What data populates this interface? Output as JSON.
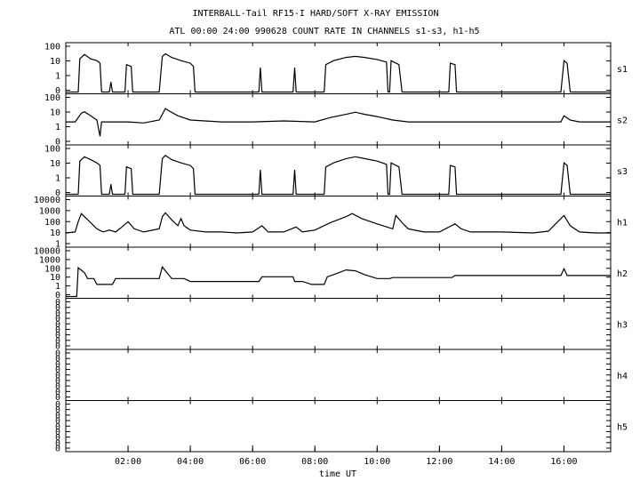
{
  "title": "INTERBALL-Tail RF15-I HARD/SOFT X-RAY EMISSION",
  "subtitle": "ATL 00:00 24:00 990628  COUNT RATE IN CHANNELS s1-s3, h1-h5",
  "colors": {
    "background": "#ffffff",
    "ink": "#000000"
  },
  "chart_data": {
    "type": "line",
    "title": "INTERBALL-Tail RF15-I HARD/SOFT X-RAY EMISSION",
    "subtitle": "ATL 00:00 24:00 990628  COUNT RATE IN CHANNELS s1-s3, h1-h5",
    "xlabel": "time UT",
    "x_tick_labels": [
      "02:00",
      "04:00",
      "06:00",
      "08:00",
      "10:00",
      "12:00",
      "14:00",
      "16:00"
    ],
    "x_tick_hours": [
      2,
      4,
      6,
      8,
      10,
      12,
      14,
      16
    ],
    "xlim_hours": [
      0,
      17.5
    ],
    "y_scale": "log",
    "grid": false,
    "panels": [
      {
        "name": "s1",
        "y_tick_labels": [
          "100",
          "10",
          "1",
          "0"
        ],
        "ylim": [
          0.1,
          200
        ],
        "series_points": [
          [
            0.0,
            0.1
          ],
          [
            0.4,
            0.1
          ],
          [
            0.45,
            20
          ],
          [
            0.6,
            40
          ],
          [
            0.8,
            20
          ],
          [
            1.0,
            15
          ],
          [
            1.1,
            10
          ],
          [
            1.15,
            0.1
          ],
          [
            1.4,
            0.1
          ],
          [
            1.45,
            0.5
          ],
          [
            1.5,
            0.1
          ],
          [
            1.9,
            0.1
          ],
          [
            1.95,
            8
          ],
          [
            2.1,
            6
          ],
          [
            2.15,
            0.1
          ],
          [
            3.0,
            0.1
          ],
          [
            3.1,
            30
          ],
          [
            3.2,
            45
          ],
          [
            3.4,
            25
          ],
          [
            3.7,
            15
          ],
          [
            4.0,
            10
          ],
          [
            4.1,
            6
          ],
          [
            4.15,
            0.1
          ],
          [
            6.2,
            0.1
          ],
          [
            6.25,
            5
          ],
          [
            6.3,
            0.1
          ],
          [
            7.3,
            0.1
          ],
          [
            7.35,
            5
          ],
          [
            7.4,
            0.1
          ],
          [
            8.3,
            0.1
          ],
          [
            8.35,
            8
          ],
          [
            8.6,
            15
          ],
          [
            9.0,
            25
          ],
          [
            9.3,
            30
          ],
          [
            9.6,
            25
          ],
          [
            10.0,
            18
          ],
          [
            10.3,
            12
          ],
          [
            10.35,
            0.1
          ],
          [
            10.4,
            0.1
          ],
          [
            10.45,
            15
          ],
          [
            10.7,
            8
          ],
          [
            10.8,
            0.1
          ],
          [
            12.3,
            0.1
          ],
          [
            12.35,
            10
          ],
          [
            12.5,
            8
          ],
          [
            12.55,
            0.1
          ],
          [
            15.9,
            0.1
          ],
          [
            16.0,
            15
          ],
          [
            16.1,
            10
          ],
          [
            16.2,
            0.1
          ],
          [
            17.5,
            0.1
          ]
        ]
      },
      {
        "name": "s2",
        "y_tick_labels": [
          "100",
          "10",
          "1",
          "0"
        ],
        "ylim": [
          0.1,
          200
        ],
        "series_points": [
          [
            0.0,
            3
          ],
          [
            0.3,
            3
          ],
          [
            0.5,
            12
          ],
          [
            0.6,
            15
          ],
          [
            0.8,
            8
          ],
          [
            1.0,
            4
          ],
          [
            1.1,
            0.3
          ],
          [
            1.15,
            3
          ],
          [
            2.0,
            3
          ],
          [
            2.5,
            2.5
          ],
          [
            3.0,
            4
          ],
          [
            3.2,
            25
          ],
          [
            3.3,
            18
          ],
          [
            3.6,
            8
          ],
          [
            4.0,
            4
          ],
          [
            5.0,
            3
          ],
          [
            6.0,
            3
          ],
          [
            7.0,
            3.5
          ],
          [
            8.0,
            3
          ],
          [
            8.5,
            6
          ],
          [
            9.0,
            10
          ],
          [
            9.3,
            14
          ],
          [
            9.6,
            10
          ],
          [
            10.0,
            7
          ],
          [
            10.5,
            4
          ],
          [
            11.0,
            3
          ],
          [
            12.0,
            3
          ],
          [
            13.0,
            3
          ],
          [
            14.0,
            3
          ],
          [
            15.0,
            3
          ],
          [
            15.9,
            3
          ],
          [
            16.0,
            8
          ],
          [
            16.2,
            4
          ],
          [
            16.5,
            3
          ],
          [
            17.5,
            3
          ]
        ]
      },
      {
        "name": "s3",
        "y_tick_labels": [
          "100",
          "10",
          "1",
          "0"
        ],
        "ylim": [
          0.1,
          200
        ],
        "series_points": [
          [
            0.0,
            0.1
          ],
          [
            0.4,
            0.1
          ],
          [
            0.45,
            20
          ],
          [
            0.6,
            40
          ],
          [
            0.8,
            25
          ],
          [
            1.0,
            15
          ],
          [
            1.1,
            10
          ],
          [
            1.15,
            0.1
          ],
          [
            1.4,
            0.1
          ],
          [
            1.45,
            0.5
          ],
          [
            1.5,
            0.1
          ],
          [
            1.9,
            0.1
          ],
          [
            1.95,
            8
          ],
          [
            2.1,
            6
          ],
          [
            2.15,
            0.1
          ],
          [
            3.0,
            0.1
          ],
          [
            3.1,
            30
          ],
          [
            3.2,
            50
          ],
          [
            3.4,
            25
          ],
          [
            3.7,
            15
          ],
          [
            4.0,
            10
          ],
          [
            4.1,
            6
          ],
          [
            4.15,
            0.1
          ],
          [
            6.2,
            0.1
          ],
          [
            6.25,
            5
          ],
          [
            6.3,
            0.1
          ],
          [
            7.3,
            0.1
          ],
          [
            7.35,
            5
          ],
          [
            7.4,
            0.1
          ],
          [
            8.3,
            0.1
          ],
          [
            8.35,
            8
          ],
          [
            8.6,
            15
          ],
          [
            9.0,
            30
          ],
          [
            9.3,
            40
          ],
          [
            9.6,
            30
          ],
          [
            10.0,
            20
          ],
          [
            10.3,
            12
          ],
          [
            10.35,
            0.1
          ],
          [
            10.4,
            0.1
          ],
          [
            10.45,
            15
          ],
          [
            10.7,
            8
          ],
          [
            10.8,
            0.1
          ],
          [
            12.3,
            0.1
          ],
          [
            12.35,
            10
          ],
          [
            12.5,
            8
          ],
          [
            12.55,
            0.1
          ],
          [
            15.9,
            0.1
          ],
          [
            16.0,
            15
          ],
          [
            16.1,
            10
          ],
          [
            16.2,
            0.1
          ],
          [
            17.5,
            0.1
          ]
        ]
      },
      {
        "name": "h1",
        "y_tick_labels": [
          "10000",
          "1000",
          "100",
          "10",
          "1"
        ],
        "ylim": [
          0.5,
          20000
        ],
        "series_points": [
          [
            0.0,
            8
          ],
          [
            0.3,
            10
          ],
          [
            0.4,
            100
          ],
          [
            0.5,
            600
          ],
          [
            0.6,
            300
          ],
          [
            0.8,
            80
          ],
          [
            1.0,
            20
          ],
          [
            1.2,
            10
          ],
          [
            1.4,
            15
          ],
          [
            1.6,
            10
          ],
          [
            1.8,
            30
          ],
          [
            2.0,
            100
          ],
          [
            2.2,
            20
          ],
          [
            2.5,
            10
          ],
          [
            3.0,
            20
          ],
          [
            3.1,
            300
          ],
          [
            3.2,
            700
          ],
          [
            3.4,
            150
          ],
          [
            3.6,
            40
          ],
          [
            3.7,
            200
          ],
          [
            3.8,
            40
          ],
          [
            4.0,
            15
          ],
          [
            4.5,
            10
          ],
          [
            5.0,
            10
          ],
          [
            5.5,
            8
          ],
          [
            6.0,
            10
          ],
          [
            6.3,
            40
          ],
          [
            6.5,
            10
          ],
          [
            7.0,
            10
          ],
          [
            7.4,
            30
          ],
          [
            7.6,
            10
          ],
          [
            8.0,
            15
          ],
          [
            8.5,
            80
          ],
          [
            9.0,
            300
          ],
          [
            9.2,
            600
          ],
          [
            9.5,
            200
          ],
          [
            10.0,
            60
          ],
          [
            10.5,
            20
          ],
          [
            10.6,
            400
          ],
          [
            10.8,
            80
          ],
          [
            11.0,
            20
          ],
          [
            11.5,
            10
          ],
          [
            12.0,
            10
          ],
          [
            12.5,
            60
          ],
          [
            12.7,
            20
          ],
          [
            13.0,
            10
          ],
          [
            14.0,
            10
          ],
          [
            15.0,
            8
          ],
          [
            15.5,
            12
          ],
          [
            16.0,
            400
          ],
          [
            16.2,
            40
          ],
          [
            16.5,
            10
          ],
          [
            17.0,
            8
          ],
          [
            17.5,
            8
          ]
        ]
      },
      {
        "name": "h2",
        "y_tick_labels": [
          "10000",
          "1000",
          "100",
          "10",
          "1",
          "0"
        ],
        "ylim": [
          0.3,
          20000
        ],
        "series_points": [
          [
            0.0,
            0.3
          ],
          [
            0.35,
            0.3
          ],
          [
            0.4,
            250
          ],
          [
            0.6,
            80
          ],
          [
            0.7,
            20
          ],
          [
            0.9,
            20
          ],
          [
            1.0,
            5
          ],
          [
            1.5,
            5
          ],
          [
            1.6,
            20
          ],
          [
            1.9,
            20
          ],
          [
            2.0,
            20
          ],
          [
            2.2,
            20
          ],
          [
            3.0,
            20
          ],
          [
            3.1,
            300
          ],
          [
            3.3,
            50
          ],
          [
            3.4,
            20
          ],
          [
            3.8,
            20
          ],
          [
            4.0,
            10
          ],
          [
            5.0,
            10
          ],
          [
            6.0,
            10
          ],
          [
            6.2,
            10
          ],
          [
            6.3,
            30
          ],
          [
            7.3,
            30
          ],
          [
            7.35,
            10
          ],
          [
            7.6,
            10
          ],
          [
            7.9,
            5
          ],
          [
            8.3,
            5
          ],
          [
            8.4,
            30
          ],
          [
            8.6,
            50
          ],
          [
            9.0,
            150
          ],
          [
            9.3,
            120
          ],
          [
            9.6,
            50
          ],
          [
            10.0,
            20
          ],
          [
            10.4,
            20
          ],
          [
            10.5,
            25
          ],
          [
            12.0,
            25
          ],
          [
            12.4,
            25
          ],
          [
            12.5,
            40
          ],
          [
            15.9,
            40
          ],
          [
            16.0,
            200
          ],
          [
            16.1,
            40
          ],
          [
            17.5,
            40
          ]
        ]
      },
      {
        "name": "h3",
        "y_tick_labels": [
          "0",
          "0",
          "0",
          "0",
          "0",
          "0",
          "0",
          "0",
          "0"
        ],
        "ylim": [
          0,
          1
        ],
        "series_points": []
      },
      {
        "name": "h4",
        "y_tick_labels": [
          "0",
          "0",
          "0",
          "0",
          "0",
          "0",
          "0",
          "0",
          "0"
        ],
        "ylim": [
          0,
          1
        ],
        "series_points": []
      },
      {
        "name": "h5",
        "y_tick_labels": [
          "0",
          "0",
          "0",
          "0",
          "0",
          "0",
          "0",
          "0",
          "0"
        ],
        "ylim": [
          0,
          1
        ],
        "series_points": []
      }
    ]
  }
}
